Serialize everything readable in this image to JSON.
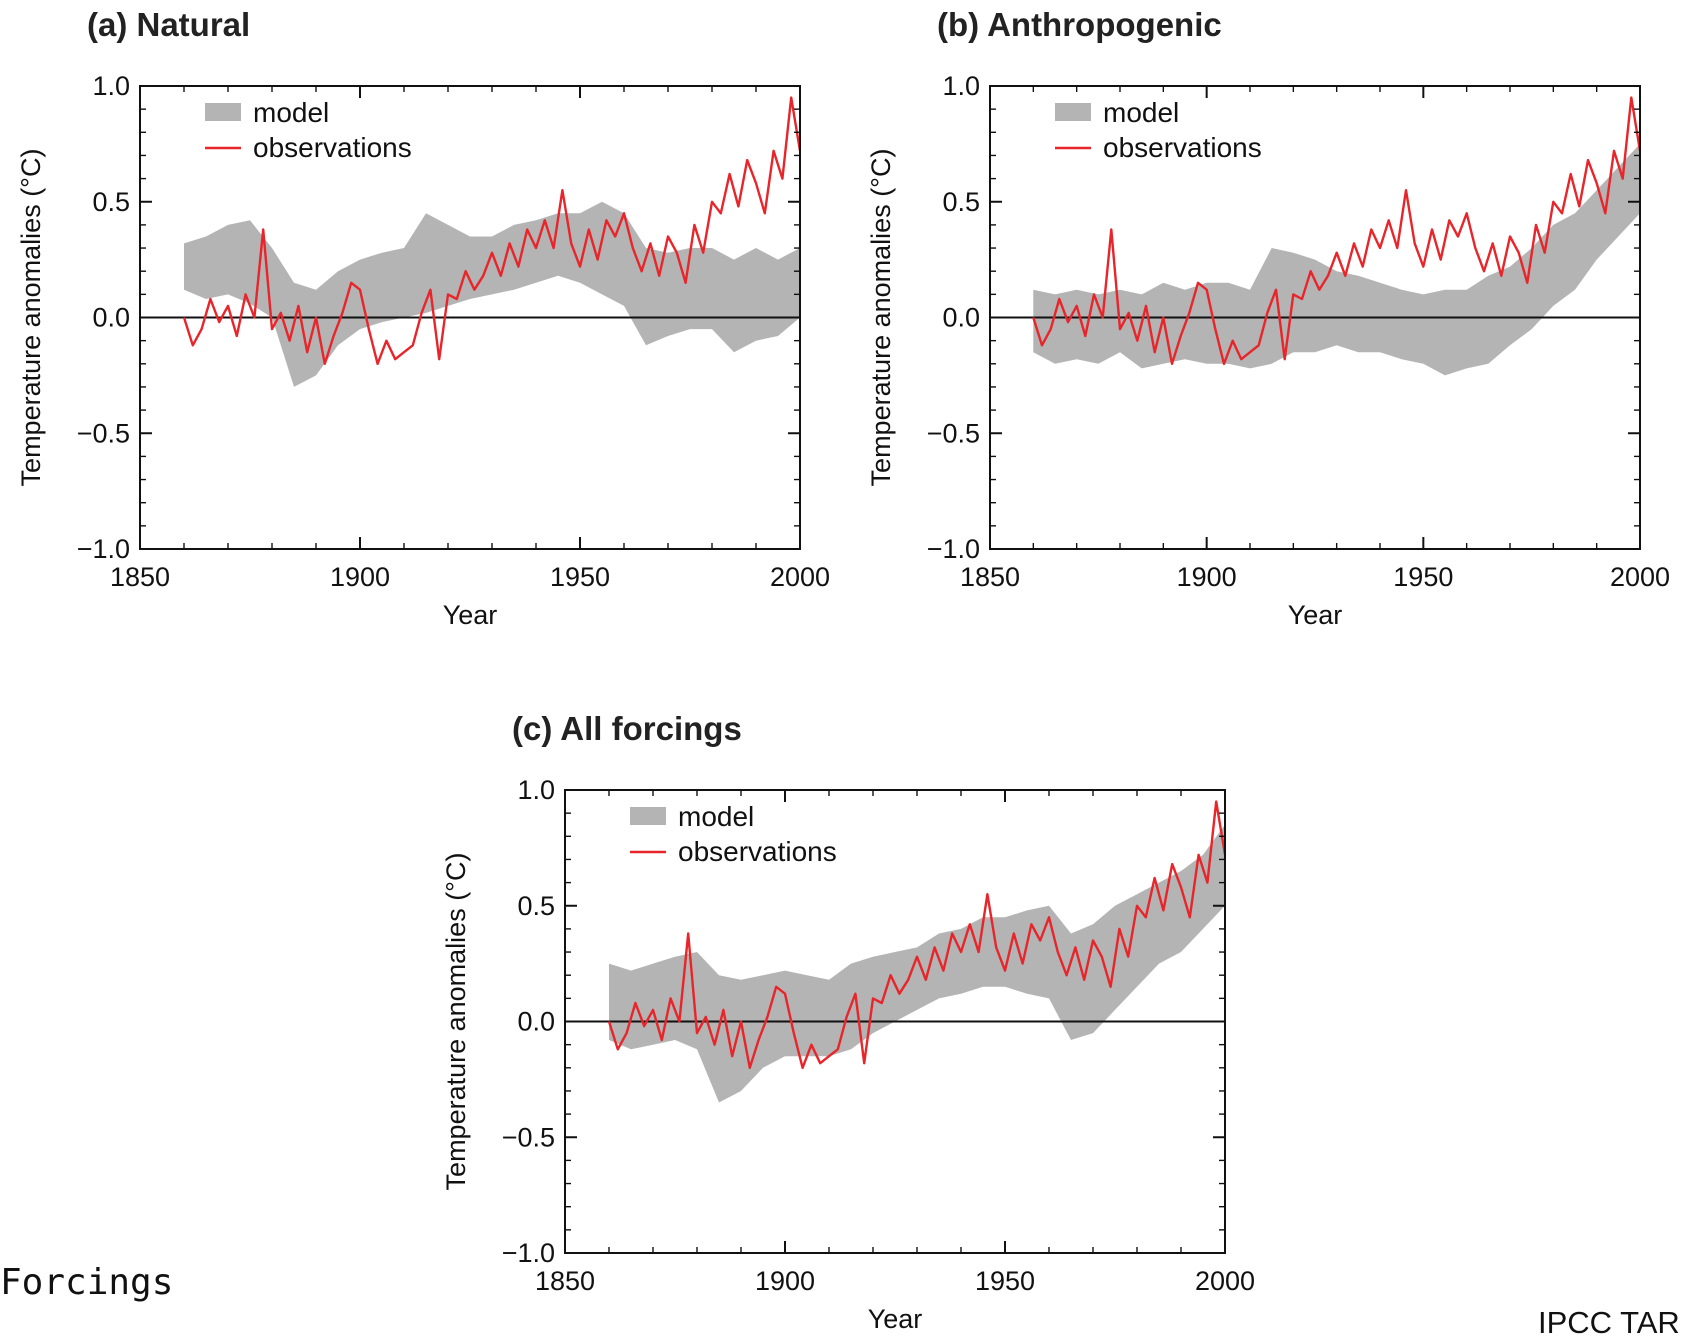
{
  "footer": {
    "left_text": "Forcings",
    "right_text": "IPCC TAR"
  },
  "colors": {
    "model": "#b4b4b4",
    "observations": "#e8252a",
    "axis": "#111111"
  },
  "chart_data": [
    {
      "type": "area",
      "title": "(a) Natural",
      "xlabel": "Year",
      "ylabel": "Temperature anomalies (°C)",
      "xlim": [
        1850,
        2000
      ],
      "ylim": [
        -1.0,
        1.0
      ],
      "xticks": [
        1850,
        1900,
        1950,
        2000
      ],
      "yticks": [
        "−1.0",
        "−0.5",
        "0.0",
        "0.5",
        "1.0"
      ],
      "grid": false,
      "legend": {
        "position": "top-left",
        "entries": [
          "model",
          "observations"
        ]
      },
      "series": [
        {
          "name": "model",
          "kind": "band",
          "x": [
            1860,
            1865,
            1870,
            1875,
            1880,
            1885,
            1890,
            1895,
            1900,
            1905,
            1910,
            1915,
            1920,
            1925,
            1930,
            1935,
            1940,
            1945,
            1950,
            1955,
            1960,
            1965,
            1970,
            1975,
            1980,
            1985,
            1990,
            1995,
            2000
          ],
          "lower": [
            0.12,
            0.08,
            0.1,
            0.06,
            0.0,
            -0.3,
            -0.25,
            -0.12,
            -0.05,
            -0.02,
            0.0,
            0.02,
            0.05,
            0.08,
            0.1,
            0.12,
            0.15,
            0.18,
            0.15,
            0.1,
            0.05,
            -0.12,
            -0.08,
            -0.05,
            -0.05,
            -0.15,
            -0.1,
            -0.08,
            0.0
          ],
          "upper": [
            0.32,
            0.35,
            0.4,
            0.42,
            0.3,
            0.15,
            0.12,
            0.2,
            0.25,
            0.28,
            0.3,
            0.45,
            0.4,
            0.35,
            0.35,
            0.4,
            0.42,
            0.45,
            0.45,
            0.5,
            0.45,
            0.3,
            0.28,
            0.3,
            0.3,
            0.25,
            0.3,
            0.25,
            0.3
          ]
        },
        {
          "name": "observations",
          "kind": "line",
          "x": [
            1860,
            1862,
            1864,
            1866,
            1868,
            1870,
            1872,
            1874,
            1876,
            1878,
            1880,
            1882,
            1884,
            1886,
            1888,
            1890,
            1892,
            1894,
            1896,
            1898,
            1900,
            1902,
            1904,
            1906,
            1908,
            1910,
            1912,
            1914,
            1916,
            1918,
            1920,
            1922,
            1924,
            1926,
            1928,
            1930,
            1932,
            1934,
            1936,
            1938,
            1940,
            1942,
            1944,
            1946,
            1948,
            1950,
            1952,
            1954,
            1956,
            1958,
            1960,
            1962,
            1964,
            1966,
            1968,
            1970,
            1972,
            1974,
            1976,
            1978,
            1980,
            1982,
            1984,
            1986,
            1988,
            1990,
            1992,
            1994,
            1996,
            1998,
            2000
          ],
          "y": [
            0.0,
            -0.12,
            -0.05,
            0.08,
            -0.02,
            0.05,
            -0.08,
            0.1,
            0.0,
            0.38,
            -0.05,
            0.02,
            -0.1,
            0.05,
            -0.15,
            0.0,
            -0.2,
            -0.08,
            0.02,
            0.15,
            0.12,
            -0.05,
            -0.2,
            -0.1,
            -0.18,
            -0.15,
            -0.12,
            0.02,
            0.12,
            -0.18,
            0.1,
            0.08,
            0.2,
            0.12,
            0.18,
            0.28,
            0.18,
            0.32,
            0.22,
            0.38,
            0.3,
            0.42,
            0.3,
            0.55,
            0.32,
            0.22,
            0.38,
            0.25,
            0.42,
            0.35,
            0.45,
            0.3,
            0.2,
            0.32,
            0.18,
            0.35,
            0.28,
            0.15,
            0.4,
            0.28,
            0.5,
            0.45,
            0.62,
            0.48,
            0.68,
            0.58,
            0.45,
            0.72,
            0.6,
            0.95,
            0.72
          ]
        }
      ]
    },
    {
      "type": "area",
      "title": "(b) Anthropogenic",
      "xlabel": "Year",
      "ylabel": "Temperature anomalies (°C)",
      "xlim": [
        1850,
        2000
      ],
      "ylim": [
        -1.0,
        1.0
      ],
      "xticks": [
        1850,
        1900,
        1950,
        2000
      ],
      "yticks": [
        "−1.0",
        "−0.5",
        "0.0",
        "0.5",
        "1.0"
      ],
      "grid": false,
      "legend": {
        "position": "top-left",
        "entries": [
          "model",
          "observations"
        ]
      },
      "series": [
        {
          "name": "model",
          "kind": "band",
          "x": [
            1860,
            1865,
            1870,
            1875,
            1880,
            1885,
            1890,
            1895,
            1900,
            1905,
            1910,
            1915,
            1920,
            1925,
            1930,
            1935,
            1940,
            1945,
            1950,
            1955,
            1960,
            1965,
            1970,
            1975,
            1980,
            1985,
            1990,
            1995,
            2000
          ],
          "lower": [
            -0.15,
            -0.2,
            -0.18,
            -0.2,
            -0.15,
            -0.22,
            -0.2,
            -0.18,
            -0.2,
            -0.2,
            -0.22,
            -0.2,
            -0.15,
            -0.15,
            -0.12,
            -0.15,
            -0.15,
            -0.18,
            -0.2,
            -0.25,
            -0.22,
            -0.2,
            -0.12,
            -0.05,
            0.05,
            0.12,
            0.25,
            0.35,
            0.45
          ],
          "upper": [
            0.12,
            0.1,
            0.12,
            0.1,
            0.12,
            0.1,
            0.15,
            0.12,
            0.15,
            0.15,
            0.12,
            0.3,
            0.28,
            0.25,
            0.2,
            0.18,
            0.15,
            0.12,
            0.1,
            0.12,
            0.12,
            0.18,
            0.22,
            0.3,
            0.4,
            0.45,
            0.55,
            0.65,
            0.75
          ]
        },
        {
          "name": "observations",
          "kind": "line",
          "x": [
            1860,
            1862,
            1864,
            1866,
            1868,
            1870,
            1872,
            1874,
            1876,
            1878,
            1880,
            1882,
            1884,
            1886,
            1888,
            1890,
            1892,
            1894,
            1896,
            1898,
            1900,
            1902,
            1904,
            1906,
            1908,
            1910,
            1912,
            1914,
            1916,
            1918,
            1920,
            1922,
            1924,
            1926,
            1928,
            1930,
            1932,
            1934,
            1936,
            1938,
            1940,
            1942,
            1944,
            1946,
            1948,
            1950,
            1952,
            1954,
            1956,
            1958,
            1960,
            1962,
            1964,
            1966,
            1968,
            1970,
            1972,
            1974,
            1976,
            1978,
            1980,
            1982,
            1984,
            1986,
            1988,
            1990,
            1992,
            1994,
            1996,
            1998,
            2000
          ],
          "y": [
            0.0,
            -0.12,
            -0.05,
            0.08,
            -0.02,
            0.05,
            -0.08,
            0.1,
            0.0,
            0.38,
            -0.05,
            0.02,
            -0.1,
            0.05,
            -0.15,
            0.0,
            -0.2,
            -0.08,
            0.02,
            0.15,
            0.12,
            -0.05,
            -0.2,
            -0.1,
            -0.18,
            -0.15,
            -0.12,
            0.02,
            0.12,
            -0.18,
            0.1,
            0.08,
            0.2,
            0.12,
            0.18,
            0.28,
            0.18,
            0.32,
            0.22,
            0.38,
            0.3,
            0.42,
            0.3,
            0.55,
            0.32,
            0.22,
            0.38,
            0.25,
            0.42,
            0.35,
            0.45,
            0.3,
            0.2,
            0.32,
            0.18,
            0.35,
            0.28,
            0.15,
            0.4,
            0.28,
            0.5,
            0.45,
            0.62,
            0.48,
            0.68,
            0.58,
            0.45,
            0.72,
            0.6,
            0.95,
            0.72
          ]
        }
      ]
    },
    {
      "type": "area",
      "title": "(c) All forcings",
      "xlabel": "Year",
      "ylabel": "Temperature anomalies (°C)",
      "xlim": [
        1850,
        2000
      ],
      "ylim": [
        -1.0,
        1.0
      ],
      "xticks": [
        1850,
        1900,
        1950,
        2000
      ],
      "yticks": [
        "−1.0",
        "−0.5",
        "0.0",
        "0.5",
        "1.0"
      ],
      "grid": false,
      "legend": {
        "position": "top-left",
        "entries": [
          "model",
          "observations"
        ]
      },
      "series": [
        {
          "name": "model",
          "kind": "band",
          "x": [
            1860,
            1865,
            1870,
            1875,
            1880,
            1885,
            1890,
            1895,
            1900,
            1905,
            1910,
            1915,
            1920,
            1925,
            1930,
            1935,
            1940,
            1945,
            1950,
            1955,
            1960,
            1965,
            1970,
            1975,
            1980,
            1985,
            1990,
            1995,
            2000
          ],
          "lower": [
            -0.08,
            -0.12,
            -0.1,
            -0.08,
            -0.12,
            -0.35,
            -0.3,
            -0.2,
            -0.15,
            -0.15,
            -0.15,
            -0.12,
            -0.05,
            0.0,
            0.05,
            0.1,
            0.12,
            0.15,
            0.15,
            0.12,
            0.1,
            -0.08,
            -0.05,
            0.05,
            0.15,
            0.25,
            0.3,
            0.4,
            0.5
          ],
          "upper": [
            0.25,
            0.22,
            0.25,
            0.28,
            0.3,
            0.2,
            0.18,
            0.2,
            0.22,
            0.2,
            0.18,
            0.25,
            0.28,
            0.3,
            0.32,
            0.38,
            0.4,
            0.45,
            0.45,
            0.48,
            0.5,
            0.38,
            0.42,
            0.5,
            0.55,
            0.6,
            0.65,
            0.72,
            0.85
          ]
        },
        {
          "name": "observations",
          "kind": "line",
          "x": [
            1860,
            1862,
            1864,
            1866,
            1868,
            1870,
            1872,
            1874,
            1876,
            1878,
            1880,
            1882,
            1884,
            1886,
            1888,
            1890,
            1892,
            1894,
            1896,
            1898,
            1900,
            1902,
            1904,
            1906,
            1908,
            1910,
            1912,
            1914,
            1916,
            1918,
            1920,
            1922,
            1924,
            1926,
            1928,
            1930,
            1932,
            1934,
            1936,
            1938,
            1940,
            1942,
            1944,
            1946,
            1948,
            1950,
            1952,
            1954,
            1956,
            1958,
            1960,
            1962,
            1964,
            1966,
            1968,
            1970,
            1972,
            1974,
            1976,
            1978,
            1980,
            1982,
            1984,
            1986,
            1988,
            1990,
            1992,
            1994,
            1996,
            1998,
            2000
          ],
          "y": [
            0.0,
            -0.12,
            -0.05,
            0.08,
            -0.02,
            0.05,
            -0.08,
            0.1,
            0.0,
            0.38,
            -0.05,
            0.02,
            -0.1,
            0.05,
            -0.15,
            0.0,
            -0.2,
            -0.08,
            0.02,
            0.15,
            0.12,
            -0.05,
            -0.2,
            -0.1,
            -0.18,
            -0.15,
            -0.12,
            0.02,
            0.12,
            -0.18,
            0.1,
            0.08,
            0.2,
            0.12,
            0.18,
            0.28,
            0.18,
            0.32,
            0.22,
            0.38,
            0.3,
            0.42,
            0.3,
            0.55,
            0.32,
            0.22,
            0.38,
            0.25,
            0.42,
            0.35,
            0.45,
            0.3,
            0.2,
            0.32,
            0.18,
            0.35,
            0.28,
            0.15,
            0.4,
            0.28,
            0.5,
            0.45,
            0.62,
            0.48,
            0.68,
            0.58,
            0.45,
            0.72,
            0.6,
            0.95,
            0.72
          ]
        }
      ]
    }
  ]
}
